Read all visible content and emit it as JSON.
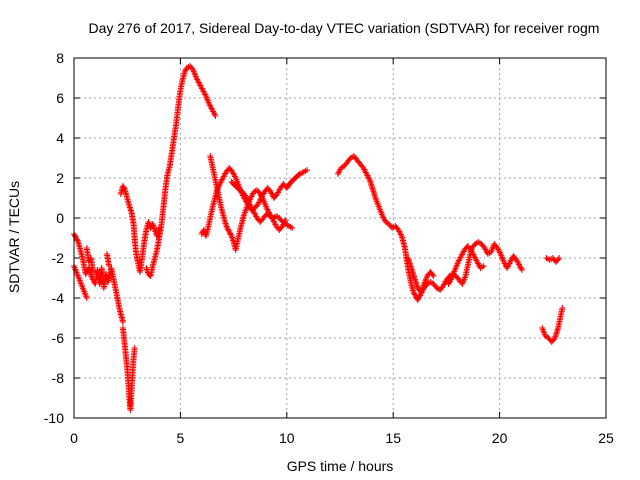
{
  "chart_data": {
    "type": "scatter",
    "title": "Day 276 of 2017, Sidereal Day-to-day VTEC variation (SDTVAR) for receiver rogm",
    "xlabel": "GPS time / hours",
    "ylabel": "SDTVAR / TECUs",
    "xlim": [
      0,
      25
    ],
    "ylim": [
      -10,
      8
    ],
    "x_ticks": [
      0,
      5,
      10,
      15,
      20,
      25
    ],
    "y_ticks": [
      -10,
      -8,
      -6,
      -4,
      -2,
      0,
      2,
      4,
      6,
      8
    ],
    "x_tick_labels": [
      "0",
      "5",
      "10",
      "15",
      "20",
      "25"
    ],
    "y_tick_labels": [
      "-10",
      "-8",
      "-6",
      "-4",
      "-2",
      "0",
      "2",
      "4",
      "6",
      "8"
    ],
    "grid": true,
    "marker": "+",
    "color": "#ff0000",
    "series": [
      {
        "name": "SDTVAR",
        "segments": [
          [
            [
              0.0,
              -0.8
            ],
            [
              0.2,
              -1.2
            ],
            [
              0.4,
              -2.0
            ],
            [
              0.55,
              -2.8
            ],
            [
              0.7,
              -2.5
            ],
            [
              0.85,
              -3.0
            ],
            [
              1.0,
              -3.3
            ],
            [
              1.1,
              -2.6
            ],
            [
              1.2,
              -3.3
            ],
            [
              1.3,
              -2.5
            ],
            [
              1.4,
              -3.5
            ],
            [
              1.5,
              -2.8
            ],
            [
              1.6,
              -3.2
            ],
            [
              1.75,
              -2.5
            ],
            [
              1.85,
              -3.0
            ],
            [
              2.0,
              -3.8
            ],
            [
              2.15,
              -4.6
            ],
            [
              2.3,
              -5.2
            ]
          ],
          [
            [
              0.0,
              -2.4
            ],
            [
              0.15,
              -2.8
            ],
            [
              0.3,
              -3.2
            ],
            [
              0.45,
              -3.6
            ],
            [
              0.6,
              -4.0
            ]
          ],
          [
            [
              0.6,
              -1.5
            ],
            [
              0.7,
              -2.2
            ],
            [
              0.8,
              -2.0
            ],
            [
              0.9,
              -2.7
            ]
          ],
          [
            [
              1.55,
              -1.8
            ],
            [
              1.65,
              -2.4
            ]
          ],
          [
            [
              2.3,
              -5.5
            ],
            [
              2.4,
              -6.5
            ],
            [
              2.5,
              -7.5
            ],
            [
              2.55,
              -8.2
            ],
            [
              2.6,
              -9.0
            ],
            [
              2.65,
              -9.6
            ],
            [
              2.7,
              -8.7
            ],
            [
              2.75,
              -7.8
            ],
            [
              2.8,
              -7.0
            ],
            [
              2.85,
              -6.5
            ]
          ],
          [
            [
              2.2,
              1.2
            ],
            [
              2.3,
              1.6
            ],
            [
              2.4,
              1.4
            ],
            [
              2.5,
              1.0
            ],
            [
              2.6,
              0.6
            ],
            [
              2.7,
              0.3
            ],
            [
              2.8,
              -0.3
            ],
            [
              2.85,
              -1.0
            ],
            [
              2.9,
              -1.6
            ],
            [
              3.0,
              -2.2
            ],
            [
              3.1,
              -2.7
            ],
            [
              3.2,
              -2.0
            ],
            [
              3.3,
              -1.2
            ],
            [
              3.4,
              -0.6
            ],
            [
              3.5,
              -0.2
            ],
            [
              3.6,
              -0.5
            ],
            [
              3.7,
              -0.3
            ],
            [
              3.8,
              -0.6
            ],
            [
              3.9,
              -0.9
            ],
            [
              4.0,
              -0.5
            ]
          ],
          [
            [
              3.4,
              -2.5
            ],
            [
              3.5,
              -2.8
            ],
            [
              3.6,
              -2.9
            ],
            [
              3.7,
              -2.4
            ],
            [
              3.8,
              -2.0
            ],
            [
              3.9,
              -1.6
            ],
            [
              4.0,
              -1.0
            ],
            [
              4.1,
              -0.4
            ],
            [
              4.2,
              0.5
            ],
            [
              4.3,
              1.5
            ],
            [
              4.4,
              2.2
            ],
            [
              4.5,
              2.6
            ],
            [
              4.6,
              3.3
            ],
            [
              4.7,
              4.0
            ],
            [
              4.8,
              4.7
            ],
            [
              4.9,
              5.6
            ],
            [
              5.0,
              6.4
            ],
            [
              5.1,
              6.9
            ],
            [
              5.2,
              7.3
            ],
            [
              5.3,
              7.5
            ],
            [
              5.45,
              7.6
            ],
            [
              5.6,
              7.4
            ],
            [
              5.75,
              7.0
            ],
            [
              5.9,
              6.7
            ],
            [
              6.05,
              6.4
            ],
            [
              6.2,
              6.1
            ],
            [
              6.35,
              5.7
            ],
            [
              6.5,
              5.4
            ],
            [
              6.65,
              5.1
            ]
          ],
          [
            [
              6.0,
              -0.8
            ],
            [
              6.1,
              -0.6
            ],
            [
              6.2,
              -0.9
            ],
            [
              6.3,
              -0.5
            ],
            [
              6.4,
              0.0
            ],
            [
              6.5,
              0.5
            ],
            [
              6.6,
              0.9
            ],
            [
              6.7,
              1.3
            ],
            [
              6.85,
              1.7
            ],
            [
              7.0,
              2.0
            ],
            [
              7.15,
              2.3
            ],
            [
              7.3,
              2.5
            ],
            [
              7.45,
              2.3
            ],
            [
              7.6,
              2.0
            ],
            [
              7.75,
              1.6
            ],
            [
              7.9,
              1.2
            ],
            [
              8.05,
              0.9
            ],
            [
              8.2,
              0.6
            ],
            [
              8.35,
              0.4
            ],
            [
              8.5,
              0.5
            ],
            [
              8.65,
              0.7
            ],
            [
              8.8,
              1.0
            ],
            [
              8.95,
              1.3
            ],
            [
              9.1,
              1.5
            ],
            [
              9.25,
              1.3
            ],
            [
              9.4,
              1.0
            ],
            [
              9.55,
              1.2
            ],
            [
              9.7,
              1.5
            ],
            [
              9.85,
              1.7
            ],
            [
              10.0,
              1.5
            ],
            [
              10.2,
              1.8
            ],
            [
              10.4,
              2.0
            ],
            [
              10.6,
              2.2
            ],
            [
              10.8,
              2.3
            ],
            [
              10.95,
              2.4
            ]
          ],
          [
            [
              6.4,
              3.1
            ],
            [
              6.5,
              2.6
            ],
            [
              6.6,
              2.1
            ],
            [
              6.7,
              1.6
            ],
            [
              6.8,
              1.1
            ],
            [
              6.9,
              0.6
            ],
            [
              7.0,
              0.2
            ],
            [
              7.1,
              -0.2
            ],
            [
              7.2,
              -0.5
            ],
            [
              7.3,
              -0.7
            ],
            [
              7.4,
              -0.9
            ],
            [
              7.5,
              -1.2
            ],
            [
              7.6,
              -1.6
            ],
            [
              7.7,
              -1.1
            ],
            [
              7.8,
              -0.6
            ],
            [
              7.9,
              -0.2
            ],
            [
              8.0,
              0.2
            ],
            [
              8.15,
              0.6
            ],
            [
              8.3,
              1.0
            ],
            [
              8.45,
              1.3
            ],
            [
              8.6,
              1.4
            ],
            [
              8.75,
              1.2
            ],
            [
              8.9,
              0.9
            ],
            [
              9.05,
              0.5
            ],
            [
              9.2,
              0.2
            ],
            [
              9.35,
              -0.1
            ],
            [
              9.5,
              -0.4
            ],
            [
              9.65,
              -0.6
            ],
            [
              9.8,
              -0.4
            ],
            [
              9.95,
              -0.1
            ]
          ],
          [
            [
              7.4,
              1.8
            ],
            [
              7.6,
              1.6
            ],
            [
              7.8,
              1.4
            ],
            [
              8.0,
              1.2
            ],
            [
              8.15,
              0.9
            ],
            [
              8.3,
              0.6
            ],
            [
              8.45,
              0.3
            ],
            [
              8.6,
              0.0
            ],
            [
              8.75,
              -0.2
            ],
            [
              8.9,
              0.0
            ],
            [
              9.05,
              0.2
            ],
            [
              9.2,
              0.1
            ],
            [
              9.35,
              0.0
            ],
            [
              9.5,
              0.1
            ],
            [
              9.65,
              0.0
            ],
            [
              9.8,
              -0.2
            ],
            [
              9.95,
              -0.3
            ],
            [
              10.1,
              -0.4
            ],
            [
              10.25,
              -0.5
            ]
          ],
          [
            [
              12.4,
              2.2
            ],
            [
              12.55,
              2.5
            ],
            [
              12.7,
              2.6
            ],
            [
              12.85,
              2.8
            ],
            [
              13.0,
              3.0
            ],
            [
              13.15,
              3.1
            ],
            [
              13.3,
              2.9
            ],
            [
              13.45,
              2.7
            ],
            [
              13.6,
              2.5
            ],
            [
              13.75,
              2.2
            ],
            [
              13.9,
              1.9
            ],
            [
              14.05,
              1.4
            ],
            [
              14.2,
              0.9
            ],
            [
              14.35,
              0.5
            ],
            [
              14.5,
              0.1
            ],
            [
              14.65,
              -0.2
            ],
            [
              14.8,
              -0.3
            ],
            [
              14.95,
              -0.5
            ],
            [
              15.1,
              -0.4
            ],
            [
              15.25,
              -0.6
            ],
            [
              15.4,
              -0.9
            ],
            [
              15.55,
              -1.5
            ],
            [
              15.65,
              -2.2
            ],
            [
              15.75,
              -2.8
            ],
            [
              15.85,
              -3.3
            ],
            [
              15.95,
              -3.7
            ],
            [
              16.05,
              -3.9
            ],
            [
              16.15,
              -4.1
            ],
            [
              16.3,
              -3.8
            ],
            [
              16.45,
              -3.5
            ],
            [
              16.6,
              -3.3
            ],
            [
              16.75,
              -3.2
            ],
            [
              16.9,
              -3.3
            ],
            [
              17.05,
              -3.5
            ],
            [
              17.2,
              -3.6
            ],
            [
              17.35,
              -3.4
            ],
            [
              17.5,
              -3.1
            ],
            [
              17.65,
              -2.9
            ],
            [
              17.8,
              -2.8
            ],
            [
              17.95,
              -2.9
            ],
            [
              18.1,
              -3.1
            ],
            [
              18.25,
              -3.3
            ],
            [
              18.4,
              -2.9
            ],
            [
              18.5,
              -2.4
            ],
            [
              18.6,
              -1.9
            ],
            [
              18.7,
              -1.5
            ],
            [
              18.85,
              -1.3
            ],
            [
              19.0,
              -1.2
            ],
            [
              19.15,
              -1.3
            ],
            [
              19.3,
              -1.5
            ],
            [
              19.45,
              -1.8
            ],
            [
              19.6,
              -1.7
            ],
            [
              19.75,
              -1.3
            ],
            [
              19.9,
              -1.5
            ],
            [
              20.05,
              -1.8
            ],
            [
              20.2,
              -2.2
            ],
            [
              20.35,
              -2.5
            ],
            [
              20.5,
              -2.2
            ],
            [
              20.65,
              -1.9
            ],
            [
              20.8,
              -2.1
            ],
            [
              20.95,
              -2.4
            ],
            [
              21.05,
              -2.6
            ]
          ],
          [
            [
              15.7,
              -2.0
            ],
            [
              15.85,
              -2.5
            ],
            [
              16.0,
              -3.0
            ],
            [
              16.15,
              -3.5
            ],
            [
              16.3,
              -3.7
            ],
            [
              16.45,
              -3.3
            ],
            [
              16.6,
              -2.9
            ],
            [
              16.75,
              -2.7
            ],
            [
              16.9,
              -2.9
            ]
          ],
          [
            [
              17.6,
              -3.3
            ],
            [
              17.75,
              -3.0
            ],
            [
              17.9,
              -2.6
            ],
            [
              18.05,
              -2.2
            ],
            [
              18.2,
              -1.9
            ],
            [
              18.35,
              -1.6
            ],
            [
              18.5,
              -1.4
            ],
            [
              18.65,
              -1.6
            ],
            [
              18.8,
              -1.9
            ],
            [
              18.95,
              -2.2
            ],
            [
              19.1,
              -2.5
            ],
            [
              19.25,
              -2.4
            ]
          ],
          [
            [
              22.0,
              -5.5
            ],
            [
              22.15,
              -5.9
            ],
            [
              22.3,
              -6.0
            ],
            [
              22.45,
              -6.2
            ],
            [
              22.6,
              -6.0
            ],
            [
              22.75,
              -5.5
            ],
            [
              22.85,
              -5.0
            ],
            [
              22.95,
              -4.5
            ]
          ],
          [
            [
              22.2,
              -2.0
            ],
            [
              22.35,
              -2.1
            ],
            [
              22.5,
              -2.0
            ],
            [
              22.65,
              -2.2
            ],
            [
              22.8,
              -2.0
            ]
          ]
        ]
      }
    ]
  }
}
